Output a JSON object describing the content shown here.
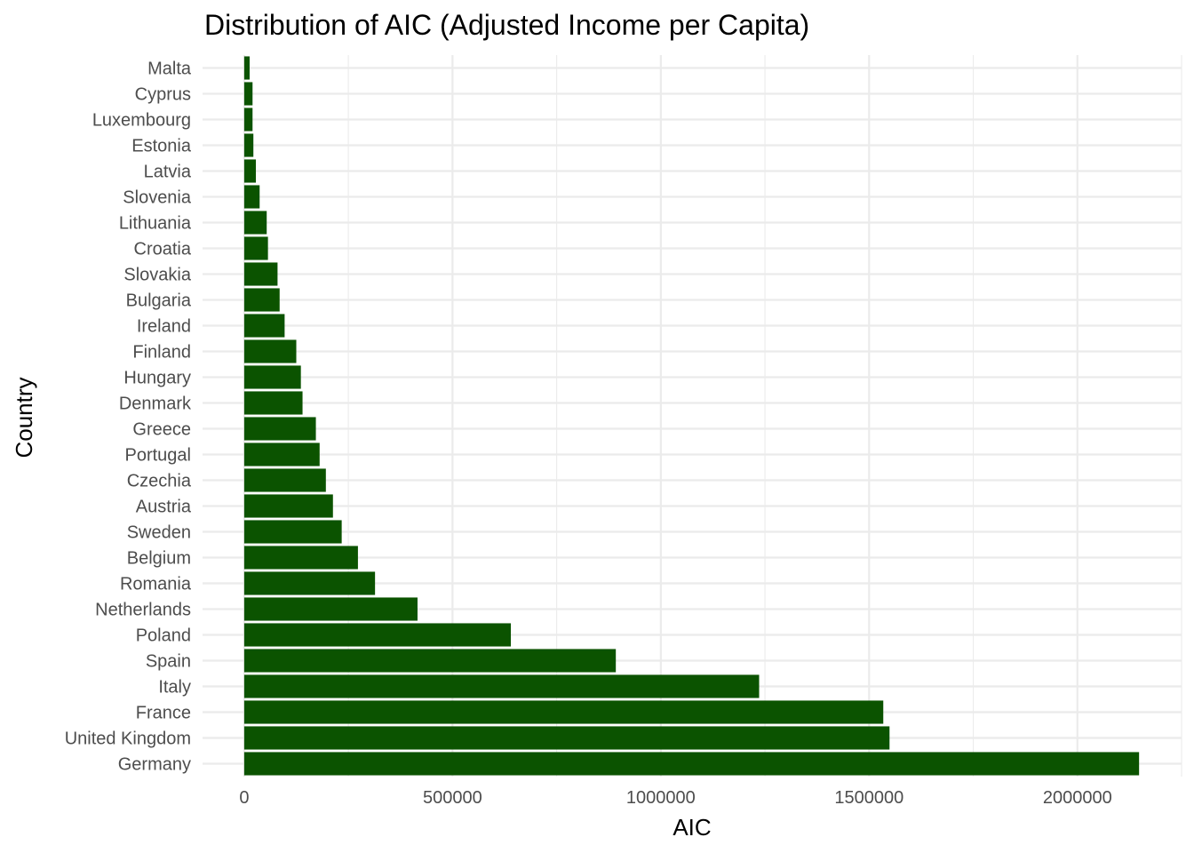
{
  "chart_data": {
    "type": "bar",
    "orientation": "horizontal",
    "title": "Distribution of AIC (Adjusted Income per Capita)",
    "xlabel": "AIC",
    "ylabel": "Country",
    "xlim": [
      -100000,
      2250000
    ],
    "xticks": [
      0,
      500000,
      1000000,
      1500000,
      2000000
    ],
    "xtick_labels": [
      "0",
      "500000",
      "1000000",
      "1500000",
      "2000000"
    ],
    "grid": true,
    "bar_color": "#0b5300",
    "categories": [
      "Malta",
      "Cyprus",
      "Luxembourg",
      "Estonia",
      "Latvia",
      "Slovenia",
      "Lithuania",
      "Croatia",
      "Slovakia",
      "Bulgaria",
      "Ireland",
      "Finland",
      "Hungary",
      "Denmark",
      "Greece",
      "Portugal",
      "Czechia",
      "Austria",
      "Sweden",
      "Belgium",
      "Romania",
      "Netherlands",
      "Poland",
      "Spain",
      "Italy",
      "France",
      "United Kingdom",
      "Germany"
    ],
    "values": [
      13000,
      20000,
      20000,
      22000,
      28000,
      37000,
      54000,
      57000,
      80000,
      85000,
      97000,
      125000,
      136000,
      140000,
      172000,
      181000,
      196000,
      213000,
      234000,
      273000,
      314000,
      416000,
      640000,
      892000,
      1236000,
      1534000,
      1549000,
      2148000
    ]
  }
}
